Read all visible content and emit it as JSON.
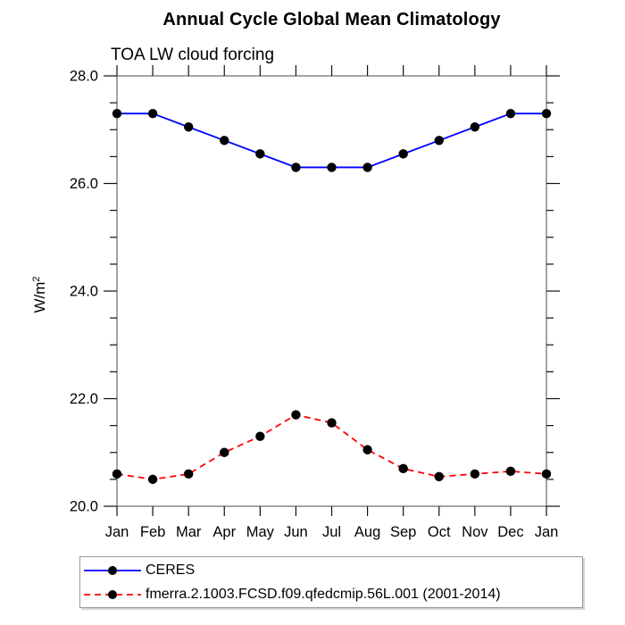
{
  "page": {
    "background": "#ffffff"
  },
  "chart_data": {
    "type": "line",
    "title": "Annual Cycle Global Mean Climatology",
    "subtitle": "TOA LW cloud forcing",
    "ylabel": {
      "base": "W/m",
      "sup": "2"
    },
    "categories": [
      "Jan",
      "Feb",
      "Mar",
      "Apr",
      "May",
      "Jun",
      "Jul",
      "Aug",
      "Sep",
      "Oct",
      "Nov",
      "Dec",
      "Jan"
    ],
    "ylim": [
      20.0,
      28.0
    ],
    "ytick_major_interval": 2.0,
    "ytick_minor_interval": 0.5,
    "ytick_labels": [
      "20.0",
      "22.0",
      "24.0",
      "26.0",
      "28.0"
    ],
    "grid": "off",
    "legend_position": "bottom-left",
    "colors": {
      "frame": "#5a5a5a",
      "tick": "#111111",
      "text": "#000000",
      "marker": "#000000"
    },
    "series": [
      {
        "name": "CERES",
        "color": "#0000ff",
        "line_style": "solid",
        "marker": "circle",
        "values": [
          27.3,
          27.3,
          27.05,
          26.8,
          26.55,
          26.3,
          26.3,
          26.3,
          26.55,
          26.8,
          27.05,
          27.3,
          27.3
        ]
      },
      {
        "name": "fmerra.2.1003.FCSD.f09.qfedcmip.56L.001 (2001-2014)",
        "color": "#ff0000",
        "line_style": "dashed",
        "marker": "circle",
        "values": [
          20.6,
          20.5,
          20.6,
          21.0,
          21.3,
          21.7,
          21.55,
          21.05,
          20.7,
          20.55,
          20.6,
          20.65,
          20.6
        ]
      }
    ]
  }
}
